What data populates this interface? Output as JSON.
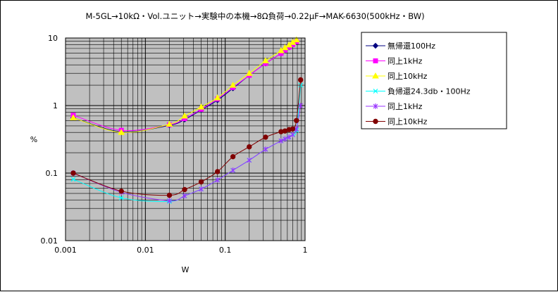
{
  "chart_data": {
    "type": "line",
    "title": "M-5GL→10kΩ・Vol.ユニット→実験中の本機→8Ω負荷→0.22μF→MAK-6630(500kHz・BW)",
    "xlabel": "W",
    "ylabel": "%",
    "x_scale": "log",
    "y_scale": "log",
    "xlim": [
      0.001,
      1
    ],
    "ylim": [
      0.01,
      10
    ],
    "x_tick_labels": [
      "0.001",
      "0.01",
      "0.1",
      "1"
    ],
    "y_tick_labels": [
      "0.01",
      "0.1",
      "1",
      "10"
    ],
    "grid": true,
    "legend_position": "right",
    "series": [
      {
        "name": "無帰還100Hz",
        "color": "#000080",
        "marker": "diamond",
        "x": [
          0.00125,
          0.005,
          0.02,
          0.031,
          0.05,
          0.08,
          0.125,
          0.2,
          0.32,
          0.5,
          0.56,
          0.63,
          0.7,
          0.78
        ],
        "y": [
          0.66,
          0.41,
          0.51,
          0.62,
          0.86,
          1.2,
          1.8,
          2.8,
          4.2,
          5.9,
          6.6,
          7.3,
          8.0,
          8.8
        ]
      },
      {
        "name": "同上1kHz",
        "color": "#ff00ff",
        "marker": "square",
        "x": [
          0.00125,
          0.005,
          0.02,
          0.031,
          0.05,
          0.08,
          0.125,
          0.2,
          0.32,
          0.5,
          0.56,
          0.63,
          0.7,
          0.78
        ],
        "y": [
          0.72,
          0.43,
          0.52,
          0.64,
          0.88,
          1.25,
          1.85,
          2.8,
          4.2,
          5.9,
          6.6,
          7.3,
          8.0,
          8.8
        ]
      },
      {
        "name": "同上10kHz",
        "color": "#ffff00",
        "marker": "triangle",
        "x": [
          0.00125,
          0.005,
          0.02,
          0.031,
          0.05,
          0.08,
          0.125,
          0.2,
          0.32,
          0.5,
          0.56,
          0.63,
          0.7,
          0.78
        ],
        "y": [
          0.66,
          0.4,
          0.53,
          0.7,
          0.95,
          1.3,
          2.0,
          3.0,
          4.6,
          6.5,
          7.2,
          7.9,
          8.6,
          9.4
        ]
      },
      {
        "name": "負帰還24.3db・100Hz",
        "color": "#00ffff",
        "marker": "x",
        "x": [
          0.00125,
          0.005,
          0.02,
          0.031,
          0.05,
          0.08,
          0.125,
          0.2,
          0.32,
          0.5,
          0.56,
          0.63,
          0.7,
          0.78,
          0.88
        ],
        "y": [
          0.081,
          0.043,
          0.038,
          0.046,
          0.058,
          0.079,
          0.11,
          0.155,
          0.225,
          0.3,
          0.32,
          0.34,
          0.37,
          0.43,
          2.0
        ]
      },
      {
        "name": "同上1kHz",
        "color": "#9933ff",
        "marker": "star",
        "x": [
          0.00125,
          0.005,
          0.02,
          0.031,
          0.05,
          0.08,
          0.125,
          0.2,
          0.32,
          0.5,
          0.56,
          0.63,
          0.7,
          0.78,
          0.88
        ],
        "y": [
          0.1,
          0.052,
          0.039,
          0.046,
          0.058,
          0.079,
          0.11,
          0.155,
          0.225,
          0.3,
          0.32,
          0.34,
          0.37,
          0.45,
          1.0
        ]
      },
      {
        "name": "同上10kHz",
        "color": "#800000",
        "marker": "circle",
        "x": [
          0.00125,
          0.005,
          0.02,
          0.031,
          0.05,
          0.08,
          0.125,
          0.2,
          0.32,
          0.5,
          0.56,
          0.63,
          0.7,
          0.78,
          0.88
        ],
        "y": [
          0.1,
          0.054,
          0.047,
          0.057,
          0.074,
          0.105,
          0.175,
          0.245,
          0.34,
          0.41,
          0.42,
          0.44,
          0.45,
          0.6,
          2.4
        ]
      }
    ]
  }
}
